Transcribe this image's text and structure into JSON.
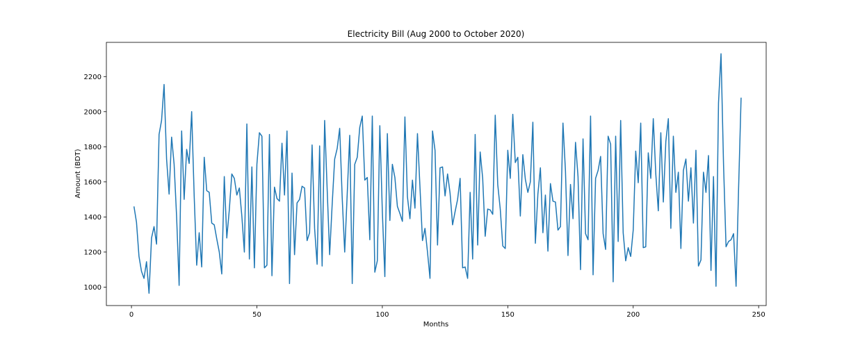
{
  "chart_data": {
    "type": "line",
    "title": "Electricity Bill (Aug 2000 to October 2020)",
    "xlabel": "Months",
    "ylabel": "Amount (BDT)",
    "xlim": [
      -10,
      253
    ],
    "ylim": [
      895,
      2395
    ],
    "xticks": [
      0,
      50,
      100,
      150,
      200,
      250
    ],
    "yticks": [
      1000,
      1200,
      1400,
      1600,
      1800,
      2000,
      2200
    ],
    "grid": false,
    "line_color": "#1f77b4",
    "series": [
      {
        "x_start": 1,
        "x_step": 1,
        "values": [
          1460,
          1370,
          1175,
          1090,
          1050,
          1145,
          965,
          1280,
          1345,
          1245,
          1870,
          1950,
          2155,
          1730,
          1530,
          1855,
          1700,
          1400,
          1010,
          1890,
          1500,
          1785,
          1705,
          2000,
          1520,
          1125,
          1310,
          1115,
          1740,
          1550,
          1540,
          1365,
          1355,
          1275,
          1200,
          1075,
          1630,
          1280,
          1440,
          1645,
          1620,
          1525,
          1565,
          1405,
          1200,
          1930,
          1160,
          1685,
          1110,
          1700,
          1880,
          1860,
          1110,
          1125,
          1870,
          1065,
          1570,
          1505,
          1490,
          1820,
          1525,
          1890,
          1020,
          1650,
          1185,
          1480,
          1500,
          1575,
          1565,
          1265,
          1310,
          1810,
          1335,
          1130,
          1805,
          1120,
          1950,
          1560,
          1185,
          1470,
          1730,
          1790,
          1905,
          1510,
          1200,
          1530,
          1865,
          1020,
          1700,
          1740,
          1910,
          1975,
          1610,
          1625,
          1270,
          1975,
          1085,
          1150,
          1920,
          1430,
          1060,
          1875,
          1380,
          1700,
          1625,
          1460,
          1420,
          1375,
          1970,
          1515,
          1390,
          1610,
          1450,
          1875,
          1570,
          1265,
          1335,
          1200,
          1050,
          1890,
          1780,
          1240,
          1680,
          1685,
          1520,
          1645,
          1535,
          1355,
          1430,
          1500,
          1620,
          1110,
          1115,
          1050,
          1540,
          1160,
          1870,
          1240,
          1770,
          1620,
          1290,
          1445,
          1440,
          1415,
          1980,
          1585,
          1445,
          1235,
          1220,
          1780,
          1620,
          1985,
          1710,
          1740,
          1405,
          1755,
          1615,
          1540,
          1600,
          1940,
          1250,
          1530,
          1680,
          1310,
          1525,
          1205,
          1590,
          1490,
          1485,
          1325,
          1345,
          1935,
          1660,
          1180,
          1585,
          1390,
          1825,
          1630,
          1100,
          1845,
          1305,
          1270,
          1975,
          1070,
          1620,
          1665,
          1745,
          1305,
          1215,
          1860,
          1815,
          1030,
          1860,
          1260,
          1950,
          1310,
          1150,
          1225,
          1175,
          1325,
          1775,
          1595,
          1935,
          1225,
          1230,
          1765,
          1620,
          1960,
          1645,
          1435,
          1880,
          1485,
          1830,
          1960,
          1335,
          1860,
          1540,
          1655,
          1220,
          1665,
          1730,
          1490,
          1680,
          1365,
          1780,
          1120,
          1155,
          1655,
          1540,
          1750,
          1095,
          1630,
          1005,
          2050,
          2330,
          1700,
          1230,
          1260,
          1270,
          1305,
          1005,
          1560,
          2080
        ]
      }
    ]
  }
}
